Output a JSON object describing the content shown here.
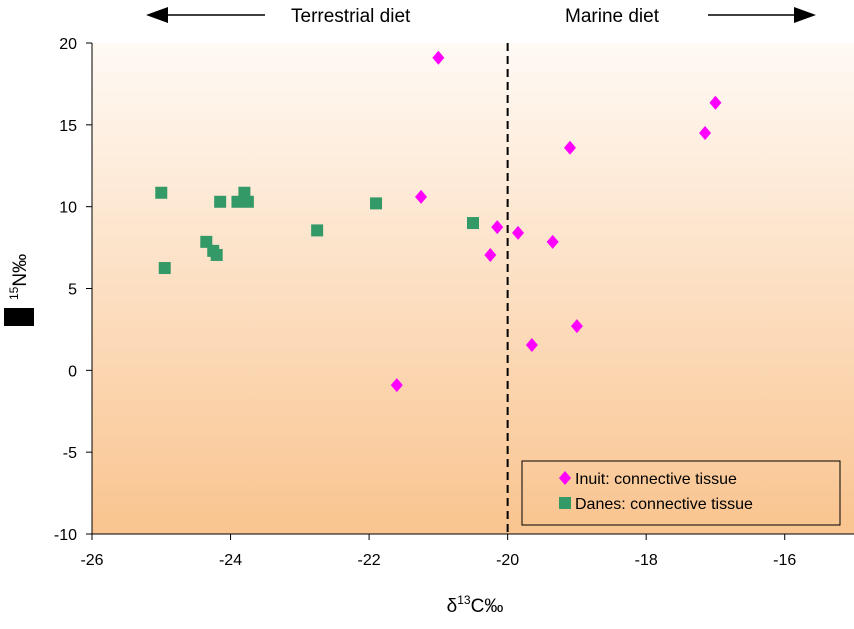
{
  "chart_data": {
    "type": "scatter",
    "xlabel": {
      "prefix": "δ",
      "sup": "13",
      "main": "C‰"
    },
    "ylabel": {
      "prefix": "",
      "sup": "15",
      "main": "N‰"
    },
    "xlim": [
      -26,
      -15
    ],
    "ylim": [
      -10,
      20
    ],
    "x_ticks": [
      -26,
      -24,
      -22,
      -20,
      -18,
      -16
    ],
    "y_ticks": [
      -10,
      -5,
      0,
      5,
      10,
      15,
      20
    ],
    "x_tick_labels": [
      "-26",
      "-24",
      "-22",
      "-20",
      "-18",
      "-16"
    ],
    "y_tick_labels": [
      "-10",
      "-5",
      "0",
      "5",
      "10",
      "15",
      "20"
    ],
    "grid": false,
    "legend_position": "bottom-right",
    "divider_x": -20,
    "annotations": {
      "left": "Terrestrial diet",
      "right": "Marine diet"
    },
    "colors": {
      "inuit": "#ff00ff",
      "danes": "#339966",
      "background_top": "#fffaf5",
      "background_bottom": "#f9c48f"
    },
    "series": [
      {
        "name": "Inuit: connective tissue",
        "marker": "diamond",
        "points": [
          [
            -21.0,
            19.1
          ],
          [
            -21.25,
            10.6
          ],
          [
            -20.15,
            8.75
          ],
          [
            -20.25,
            7.05
          ],
          [
            -19.85,
            8.4
          ],
          [
            -19.35,
            7.85
          ],
          [
            -19.1,
            13.6
          ],
          [
            -19.0,
            2.7
          ],
          [
            -19.65,
            1.55
          ],
          [
            -21.6,
            -0.9
          ],
          [
            -17.15,
            14.5
          ],
          [
            -17.0,
            16.35
          ]
        ]
      },
      {
        "name": "Danes: connective tissue",
        "marker": "square",
        "points": [
          [
            -25.0,
            10.85
          ],
          [
            -24.95,
            6.25
          ],
          [
            -24.35,
            7.85
          ],
          [
            -24.25,
            7.3
          ],
          [
            -24.2,
            7.05
          ],
          [
            -24.15,
            10.3
          ],
          [
            -23.9,
            10.3
          ],
          [
            -23.8,
            10.85
          ],
          [
            -23.75,
            10.3
          ],
          [
            -22.75,
            8.55
          ],
          [
            -21.9,
            10.2
          ],
          [
            -20.5,
            9.0
          ]
        ]
      }
    ]
  }
}
